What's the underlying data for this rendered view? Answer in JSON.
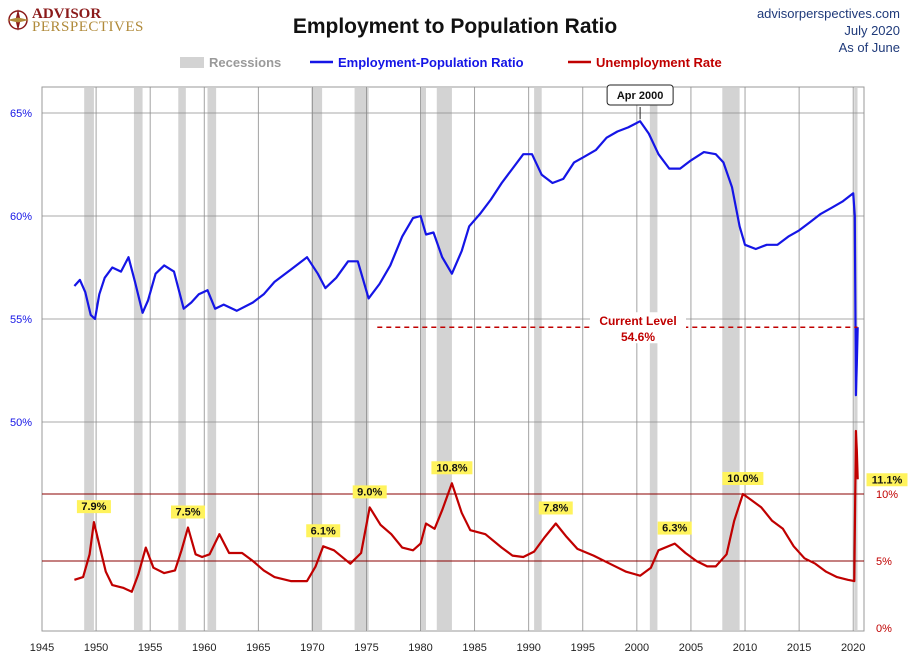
{
  "header": {
    "logo_line1": "ADVISOR",
    "logo_line2": "PERSPECTIVES",
    "title": "Employment to Population Ratio",
    "source_line1": "advisorperspectives.com",
    "source_line2": "July 2020",
    "source_line3": "As of June"
  },
  "colors": {
    "epop": "#1515e6",
    "unemp": "#c00000",
    "recession": "#d3d3d3",
    "grid": "#8c8c8c"
  },
  "chart_data": {
    "type": "line",
    "legend": {
      "position": "top-center",
      "items": [
        "Recessions",
        "Employment-Population Ratio",
        "Unemployment Rate"
      ]
    },
    "x_axis": {
      "range": [
        1945,
        2021
      ],
      "ticks": [
        1945,
        1950,
        1955,
        1960,
        1965,
        1970,
        1975,
        1980,
        1985,
        1990,
        1995,
        2000,
        2005,
        2010,
        2015,
        2020
      ]
    },
    "y_left": {
      "ticks": [
        "50%",
        "55%",
        "60%",
        "65%"
      ],
      "tick_values": [
        50,
        55,
        60,
        65
      ]
    },
    "y_right": {
      "ticks": [
        "0%",
        "5%",
        "10%"
      ],
      "tick_values": [
        0,
        5,
        10
      ]
    },
    "recessions": [
      [
        1948.9,
        1949.8
      ],
      [
        1953.5,
        1954.3
      ],
      [
        1957.6,
        1958.3
      ],
      [
        1960.3,
        1961.1
      ],
      [
        1969.9,
        1970.9
      ],
      [
        1973.9,
        1975.2
      ],
      [
        1980.0,
        1980.5
      ],
      [
        1981.5,
        1982.9
      ],
      [
        1990.5,
        1991.2
      ],
      [
        2001.2,
        2001.9
      ],
      [
        2007.9,
        2009.5
      ],
      [
        2020.1,
        2020.4
      ]
    ],
    "series": [
      {
        "name": "Employment-Population Ratio",
        "axis": "left",
        "points": [
          [
            1948.0,
            56.6
          ],
          [
            1948.5,
            56.9
          ],
          [
            1949.0,
            56.3
          ],
          [
            1949.5,
            55.2
          ],
          [
            1949.9,
            55.0
          ],
          [
            1950.3,
            56.2
          ],
          [
            1950.8,
            57.0
          ],
          [
            1951.5,
            57.5
          ],
          [
            1952.3,
            57.3
          ],
          [
            1953.0,
            58.0
          ],
          [
            1953.6,
            56.8
          ],
          [
            1954.3,
            55.3
          ],
          [
            1954.8,
            55.9
          ],
          [
            1955.5,
            57.2
          ],
          [
            1956.3,
            57.6
          ],
          [
            1957.2,
            57.3
          ],
          [
            1958.1,
            55.5
          ],
          [
            1958.8,
            55.8
          ],
          [
            1959.5,
            56.2
          ],
          [
            1960.3,
            56.4
          ],
          [
            1961.0,
            55.5
          ],
          [
            1961.8,
            55.7
          ],
          [
            1963.0,
            55.4
          ],
          [
            1964.5,
            55.8
          ],
          [
            1965.5,
            56.2
          ],
          [
            1966.5,
            56.8
          ],
          [
            1968.0,
            57.4
          ],
          [
            1969.5,
            58.0
          ],
          [
            1970.5,
            57.2
          ],
          [
            1971.2,
            56.5
          ],
          [
            1972.2,
            57.0
          ],
          [
            1973.3,
            57.8
          ],
          [
            1974.2,
            57.8
          ],
          [
            1975.2,
            56.0
          ],
          [
            1976.2,
            56.7
          ],
          [
            1977.2,
            57.6
          ],
          [
            1978.3,
            59.0
          ],
          [
            1979.3,
            59.9
          ],
          [
            1980.0,
            60.0
          ],
          [
            1980.5,
            59.1
          ],
          [
            1981.2,
            59.2
          ],
          [
            1982.0,
            58.0
          ],
          [
            1982.9,
            57.2
          ],
          [
            1983.8,
            58.3
          ],
          [
            1984.5,
            59.5
          ],
          [
            1985.5,
            60.1
          ],
          [
            1986.5,
            60.8
          ],
          [
            1987.5,
            61.6
          ],
          [
            1988.5,
            62.3
          ],
          [
            1989.5,
            63.0
          ],
          [
            1990.3,
            63.0
          ],
          [
            1991.2,
            62.0
          ],
          [
            1992.2,
            61.6
          ],
          [
            1993.2,
            61.8
          ],
          [
            1994.2,
            62.6
          ],
          [
            1995.2,
            62.9
          ],
          [
            1996.2,
            63.2
          ],
          [
            1997.2,
            63.8
          ],
          [
            1998.2,
            64.1
          ],
          [
            1999.2,
            64.3
          ],
          [
            2000.3,
            64.6
          ],
          [
            2001.1,
            64.0
          ],
          [
            2002.0,
            63.0
          ],
          [
            2003.0,
            62.3
          ],
          [
            2004.0,
            62.3
          ],
          [
            2005.0,
            62.7
          ],
          [
            2006.2,
            63.1
          ],
          [
            2007.3,
            63.0
          ],
          [
            2008.0,
            62.6
          ],
          [
            2008.8,
            61.4
          ],
          [
            2009.5,
            59.5
          ],
          [
            2010.0,
            58.6
          ],
          [
            2011.0,
            58.4
          ],
          [
            2012.0,
            58.6
          ],
          [
            2013.0,
            58.6
          ],
          [
            2014.0,
            59.0
          ],
          [
            2015.0,
            59.3
          ],
          [
            2016.0,
            59.7
          ],
          [
            2017.0,
            60.1
          ],
          [
            2018.0,
            60.4
          ],
          [
            2019.0,
            60.7
          ],
          [
            2020.0,
            61.1
          ],
          [
            2020.15,
            60.0
          ],
          [
            2020.25,
            51.3
          ],
          [
            2020.33,
            52.8
          ],
          [
            2020.42,
            54.6
          ]
        ]
      },
      {
        "name": "Unemployment Rate",
        "axis": "right",
        "points": [
          [
            1948.0,
            3.6
          ],
          [
            1948.8,
            3.8
          ],
          [
            1949.4,
            5.5
          ],
          [
            1949.8,
            7.9
          ],
          [
            1950.3,
            6.2
          ],
          [
            1950.9,
            4.2
          ],
          [
            1951.5,
            3.2
          ],
          [
            1952.5,
            3.0
          ],
          [
            1953.3,
            2.7
          ],
          [
            1953.9,
            4.0
          ],
          [
            1954.6,
            6.0
          ],
          [
            1955.3,
            4.5
          ],
          [
            1956.3,
            4.1
          ],
          [
            1957.3,
            4.3
          ],
          [
            1957.9,
            5.8
          ],
          [
            1958.5,
            7.5
          ],
          [
            1959.2,
            5.5
          ],
          [
            1959.8,
            5.3
          ],
          [
            1960.5,
            5.5
          ],
          [
            1961.4,
            7.0
          ],
          [
            1962.3,
            5.6
          ],
          [
            1963.5,
            5.6
          ],
          [
            1964.5,
            5.0
          ],
          [
            1965.5,
            4.3
          ],
          [
            1966.5,
            3.8
          ],
          [
            1968.0,
            3.5
          ],
          [
            1969.5,
            3.5
          ],
          [
            1970.3,
            4.6
          ],
          [
            1971.0,
            6.1
          ],
          [
            1972.0,
            5.8
          ],
          [
            1973.5,
            4.8
          ],
          [
            1974.5,
            5.6
          ],
          [
            1975.3,
            9.0
          ],
          [
            1976.3,
            7.7
          ],
          [
            1977.3,
            7.0
          ],
          [
            1978.3,
            6.0
          ],
          [
            1979.3,
            5.8
          ],
          [
            1980.0,
            6.3
          ],
          [
            1980.5,
            7.8
          ],
          [
            1981.3,
            7.4
          ],
          [
            1982.0,
            8.8
          ],
          [
            1982.9,
            10.8
          ],
          [
            1983.8,
            8.6
          ],
          [
            1984.6,
            7.3
          ],
          [
            1986.0,
            7.0
          ],
          [
            1987.5,
            6.0
          ],
          [
            1988.5,
            5.4
          ],
          [
            1989.5,
            5.3
          ],
          [
            1990.5,
            5.7
          ],
          [
            1991.5,
            6.8
          ],
          [
            1992.5,
            7.8
          ],
          [
            1993.5,
            6.8
          ],
          [
            1994.5,
            5.9
          ],
          [
            1996.0,
            5.4
          ],
          [
            1997.5,
            4.8
          ],
          [
            1999.0,
            4.2
          ],
          [
            2000.3,
            3.9
          ],
          [
            2001.3,
            4.5
          ],
          [
            2002.0,
            5.8
          ],
          [
            2003.5,
            6.3
          ],
          [
            2004.5,
            5.6
          ],
          [
            2005.5,
            5.0
          ],
          [
            2006.5,
            4.6
          ],
          [
            2007.3,
            4.6
          ],
          [
            2008.3,
            5.5
          ],
          [
            2009.0,
            8.0
          ],
          [
            2009.8,
            10.0
          ],
          [
            2010.5,
            9.6
          ],
          [
            2011.5,
            9.0
          ],
          [
            2012.5,
            8.0
          ],
          [
            2013.5,
            7.4
          ],
          [
            2014.5,
            6.1
          ],
          [
            2015.5,
            5.2
          ],
          [
            2016.5,
            4.8
          ],
          [
            2017.5,
            4.2
          ],
          [
            2018.5,
            3.8
          ],
          [
            2019.5,
            3.6
          ],
          [
            2020.1,
            3.5
          ],
          [
            2020.25,
            14.7
          ],
          [
            2020.33,
            13.3
          ],
          [
            2020.42,
            11.1
          ]
        ]
      }
    ],
    "annotations": [
      {
        "text": "7.9%",
        "x": 1949.8,
        "series": "Unemployment Rate",
        "value": 7.9
      },
      {
        "text": "7.5%",
        "x": 1958.5,
        "series": "Unemployment Rate",
        "value": 7.5
      },
      {
        "text": "6.1%",
        "x": 1971.0,
        "series": "Unemployment Rate",
        "value": 6.1
      },
      {
        "text": "9.0%",
        "x": 1975.3,
        "series": "Unemployment Rate",
        "value": 9.0
      },
      {
        "text": "10.8%",
        "x": 1982.9,
        "series": "Unemployment Rate",
        "value": 10.8
      },
      {
        "text": "7.8%",
        "x": 1992.5,
        "series": "Unemployment Rate",
        "value": 7.8
      },
      {
        "text": "6.3%",
        "x": 2003.5,
        "series": "Unemployment Rate",
        "value": 6.3
      },
      {
        "text": "10.0%",
        "x": 2009.8,
        "series": "Unemployment Rate",
        "value": 10.0
      },
      {
        "text": "11.1%",
        "series": "Unemployment Rate",
        "value": 11.1
      }
    ],
    "callouts": {
      "peak_label": "Apr 2000",
      "peak_x": 2000.3,
      "current_label": "Current Level",
      "current_value_label": "54.6%",
      "current_value": 54.6,
      "current_line_from": 1976.0
    }
  }
}
